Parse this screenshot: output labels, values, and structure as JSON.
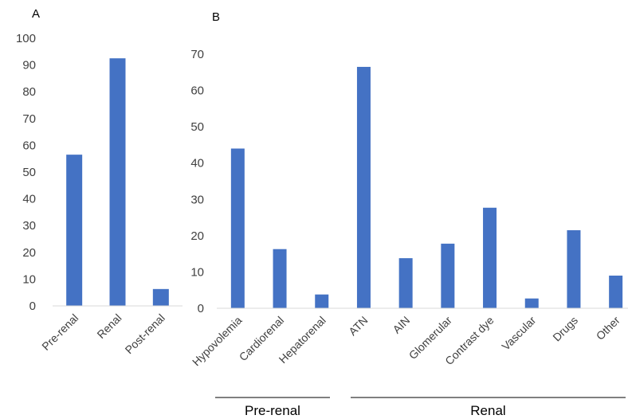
{
  "chart_data": [
    {
      "type": "bar",
      "panel_label": "A",
      "categories": [
        "Pre-renal",
        "Renal",
        "Post-renal"
      ],
      "values": [
        56.5,
        92.5,
        6.3
      ],
      "ylim": [
        0,
        100
      ],
      "yticks": [
        0,
        10,
        20,
        30,
        40,
        50,
        60,
        70,
        80,
        90,
        100
      ],
      "grid": false,
      "color": "#4472C4"
    },
    {
      "type": "bar",
      "panel_label": "B",
      "categories": [
        "Hypovolemia",
        "Cardiorenal",
        "Hepatorenal",
        "ATN",
        "AIN",
        "Glomerular",
        "Contrast dye",
        "Vascular",
        "Drugs",
        "Other"
      ],
      "values": [
        44,
        16.3,
        3.8,
        66.5,
        13.8,
        17.8,
        27.7,
        2.7,
        21.5,
        9
      ],
      "ylim": [
        0,
        70
      ],
      "yticks": [
        0,
        10,
        20,
        30,
        40,
        50,
        60,
        70
      ],
      "grid": false,
      "color": "#4472C4",
      "groups": [
        {
          "label": "Pre-renal",
          "categories": [
            "Hypovolemia",
            "Cardiorenal",
            "Hepatorenal"
          ]
        },
        {
          "label": "Renal",
          "categories": [
            "ATN",
            "AIN",
            "Glomerular",
            "Contrast dye",
            "Vascular",
            "Drugs",
            "Other"
          ]
        }
      ]
    }
  ]
}
